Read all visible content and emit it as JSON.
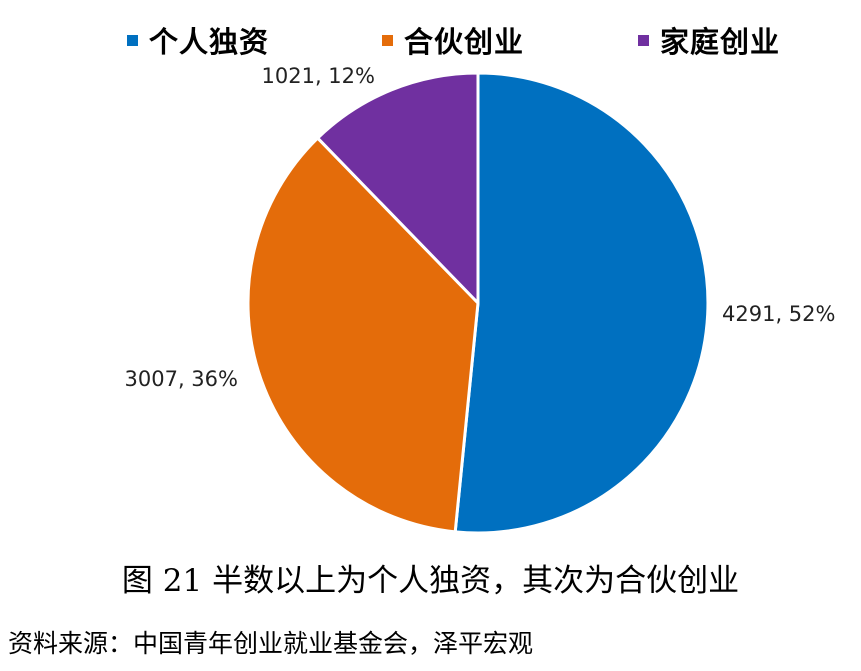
{
  "chart_data": {
    "type": "pie",
    "categories": [
      "个人独资",
      "合伙创业",
      "家庭创业"
    ],
    "values": [
      4291,
      3007,
      1021
    ],
    "percent_labels": [
      "52%",
      "36%",
      "12%"
    ],
    "data_labels": [
      "4291, 52%",
      "3007, 36%",
      "1021, 12%"
    ],
    "colors": [
      "#0070C0",
      "#E46C0A",
      "#7030A0"
    ],
    "start_angle": "12 o'clock",
    "direction": "clockwise",
    "legend_position": "top"
  },
  "caption": "图 21  半数以上为个人独资，其次为合伙创业",
  "source": "资料来源：中国青年创业就业基金会，泽平宏观"
}
